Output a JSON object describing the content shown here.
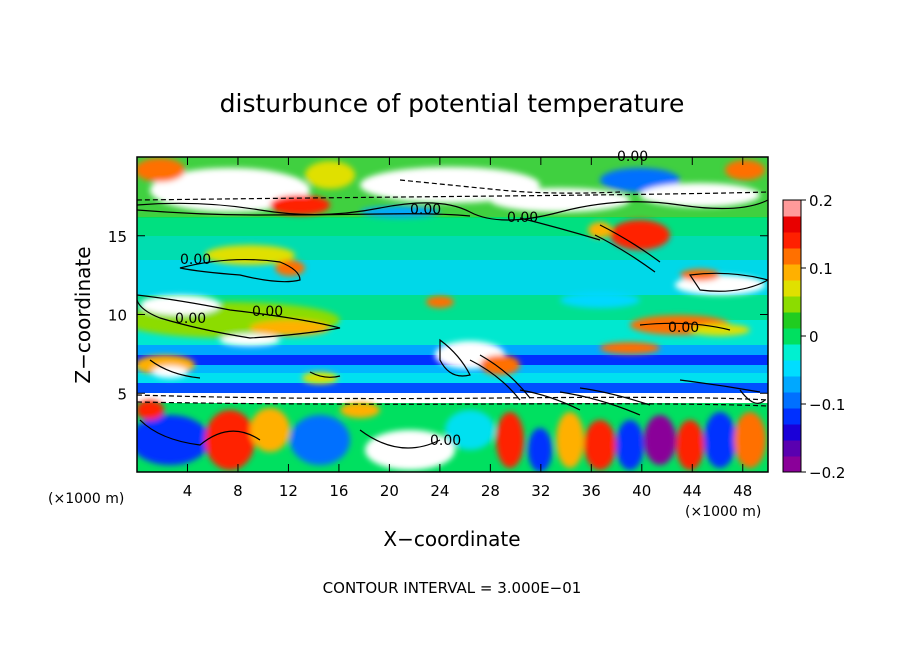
{
  "chart_data": {
    "type": "heatmap",
    "title": "disturbunce of potential temperature",
    "xlabel": "X−coordinate",
    "ylabel": "Z−coordinate",
    "x_unit_left": "(×1000 m)",
    "x_unit_right": "(×1000 m)",
    "xlim": [
      0,
      50
    ],
    "ylim": [
      0,
      20
    ],
    "x_ticks": [
      4,
      8,
      12,
      16,
      20,
      24,
      28,
      32,
      36,
      40,
      44,
      48
    ],
    "y_ticks": [
      5,
      10,
      15
    ],
    "colorbar": {
      "ticks": [
        "0.2",
        "0.1",
        "0",
        "−0.1",
        "−0.2"
      ],
      "tick_values": [
        0.2,
        0.1,
        0,
        -0.1,
        -0.2
      ],
      "range": [
        -0.2,
        0.2
      ],
      "colors": [
        "#8a0099",
        "#5a00b0",
        "#1a00d8",
        "#0030ff",
        "#0070ff",
        "#00a8ff",
        "#00ddff",
        "#00f0d0",
        "#00e060",
        "#20cc20",
        "#8cdc00",
        "#e0e000",
        "#ffb000",
        "#ff7000",
        "#ff2000",
        "#e80000",
        "#ff9a9a"
      ]
    },
    "contour_labels": [
      "0.00",
      "0.00",
      "0.00",
      "0.00",
      "0.00",
      "0.00",
      "0.00",
      "0.00"
    ],
    "footer": "CONTOUR INTERVAL = 3.000E−01"
  }
}
